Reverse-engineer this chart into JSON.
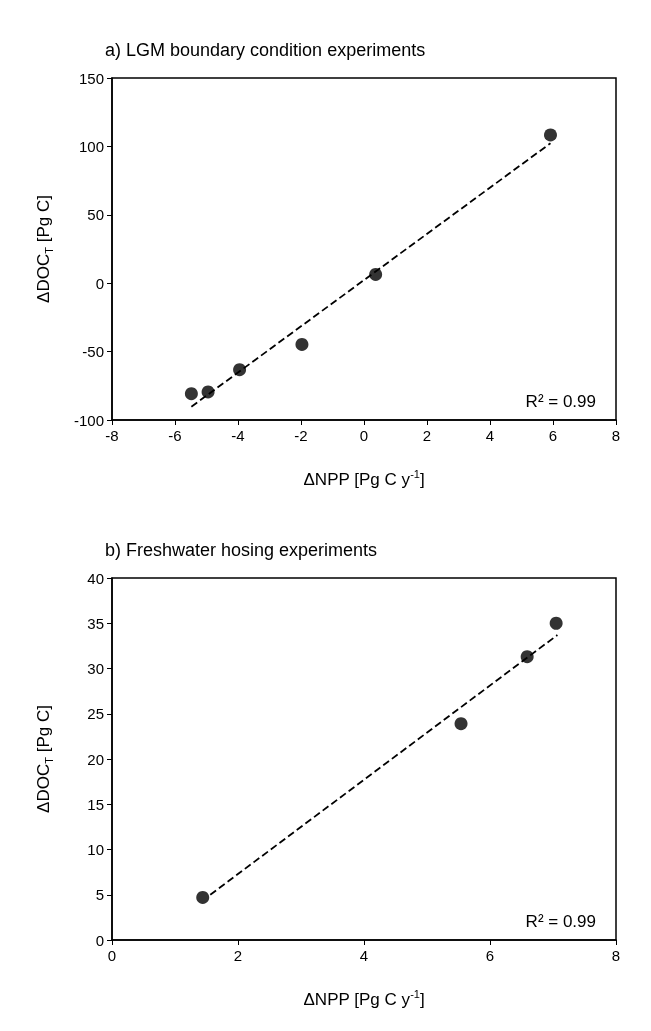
{
  "chart_data": [
    {
      "type": "scatter",
      "title": "a) LGM boundary condition experiments",
      "xlabel": "ΔNPP [Pg C y$^{-1}$]",
      "ylabel": "ΔDOC$_{T}$ [Pg C]",
      "xlim": [
        -8,
        8
      ],
      "xticks": [
        -8,
        -6,
        -4,
        -2,
        0,
        2,
        4,
        6,
        8
      ],
      "ylim": [
        -100,
        150
      ],
      "yticks": [
        -100,
        -50,
        0,
        50,
        100,
        150
      ],
      "grid": false,
      "annotations": [
        "R² = 0.99"
      ],
      "series": [
        {
          "color": "#000000",
          "marker": "circle",
          "x": [
            -5.48,
            -4.95,
            -3.95,
            -1.97,
            0.37,
            5.92
          ],
          "values": [
            -80.8,
            -79.5,
            -63.2,
            -44.8,
            6.4,
            108.4
          ]
        },
        {
          "type": "line",
          "color": "#000000",
          "marker": "none",
          "line_style": "dashed",
          "x": [
            -5.48,
            5.92
          ],
          "values": [
            -90.3,
            102.3
          ]
        }
      ]
    },
    {
      "type": "scatter",
      "title": "b) Freshwater hosing experiments",
      "xlabel": "ΔNPP [Pg C y$^{-1}$]",
      "ylabel": "ΔDOC$_{T}$ [Pg C]",
      "xlim": [
        0,
        8
      ],
      "xticks": [
        0,
        2,
        4,
        6,
        8
      ],
      "ylim": [
        0,
        40
      ],
      "yticks": [
        0,
        5,
        10,
        15,
        20,
        25,
        30,
        35,
        40
      ],
      "grid": false,
      "annotations": [
        "R² = 0.99"
      ],
      "series": [
        {
          "color": "#000000",
          "marker": "circle",
          "x": [
            1.44,
            5.54,
            6.59,
            7.05
          ],
          "values": [
            4.7,
            23.9,
            31.3,
            35.0
          ]
        },
        {
          "type": "line",
          "color": "#000000",
          "marker": "none",
          "line_style": "dashed",
          "x": [
            1.56,
            7.07
          ],
          "values": [
            5.0,
            33.7
          ]
        }
      ]
    }
  ]
}
